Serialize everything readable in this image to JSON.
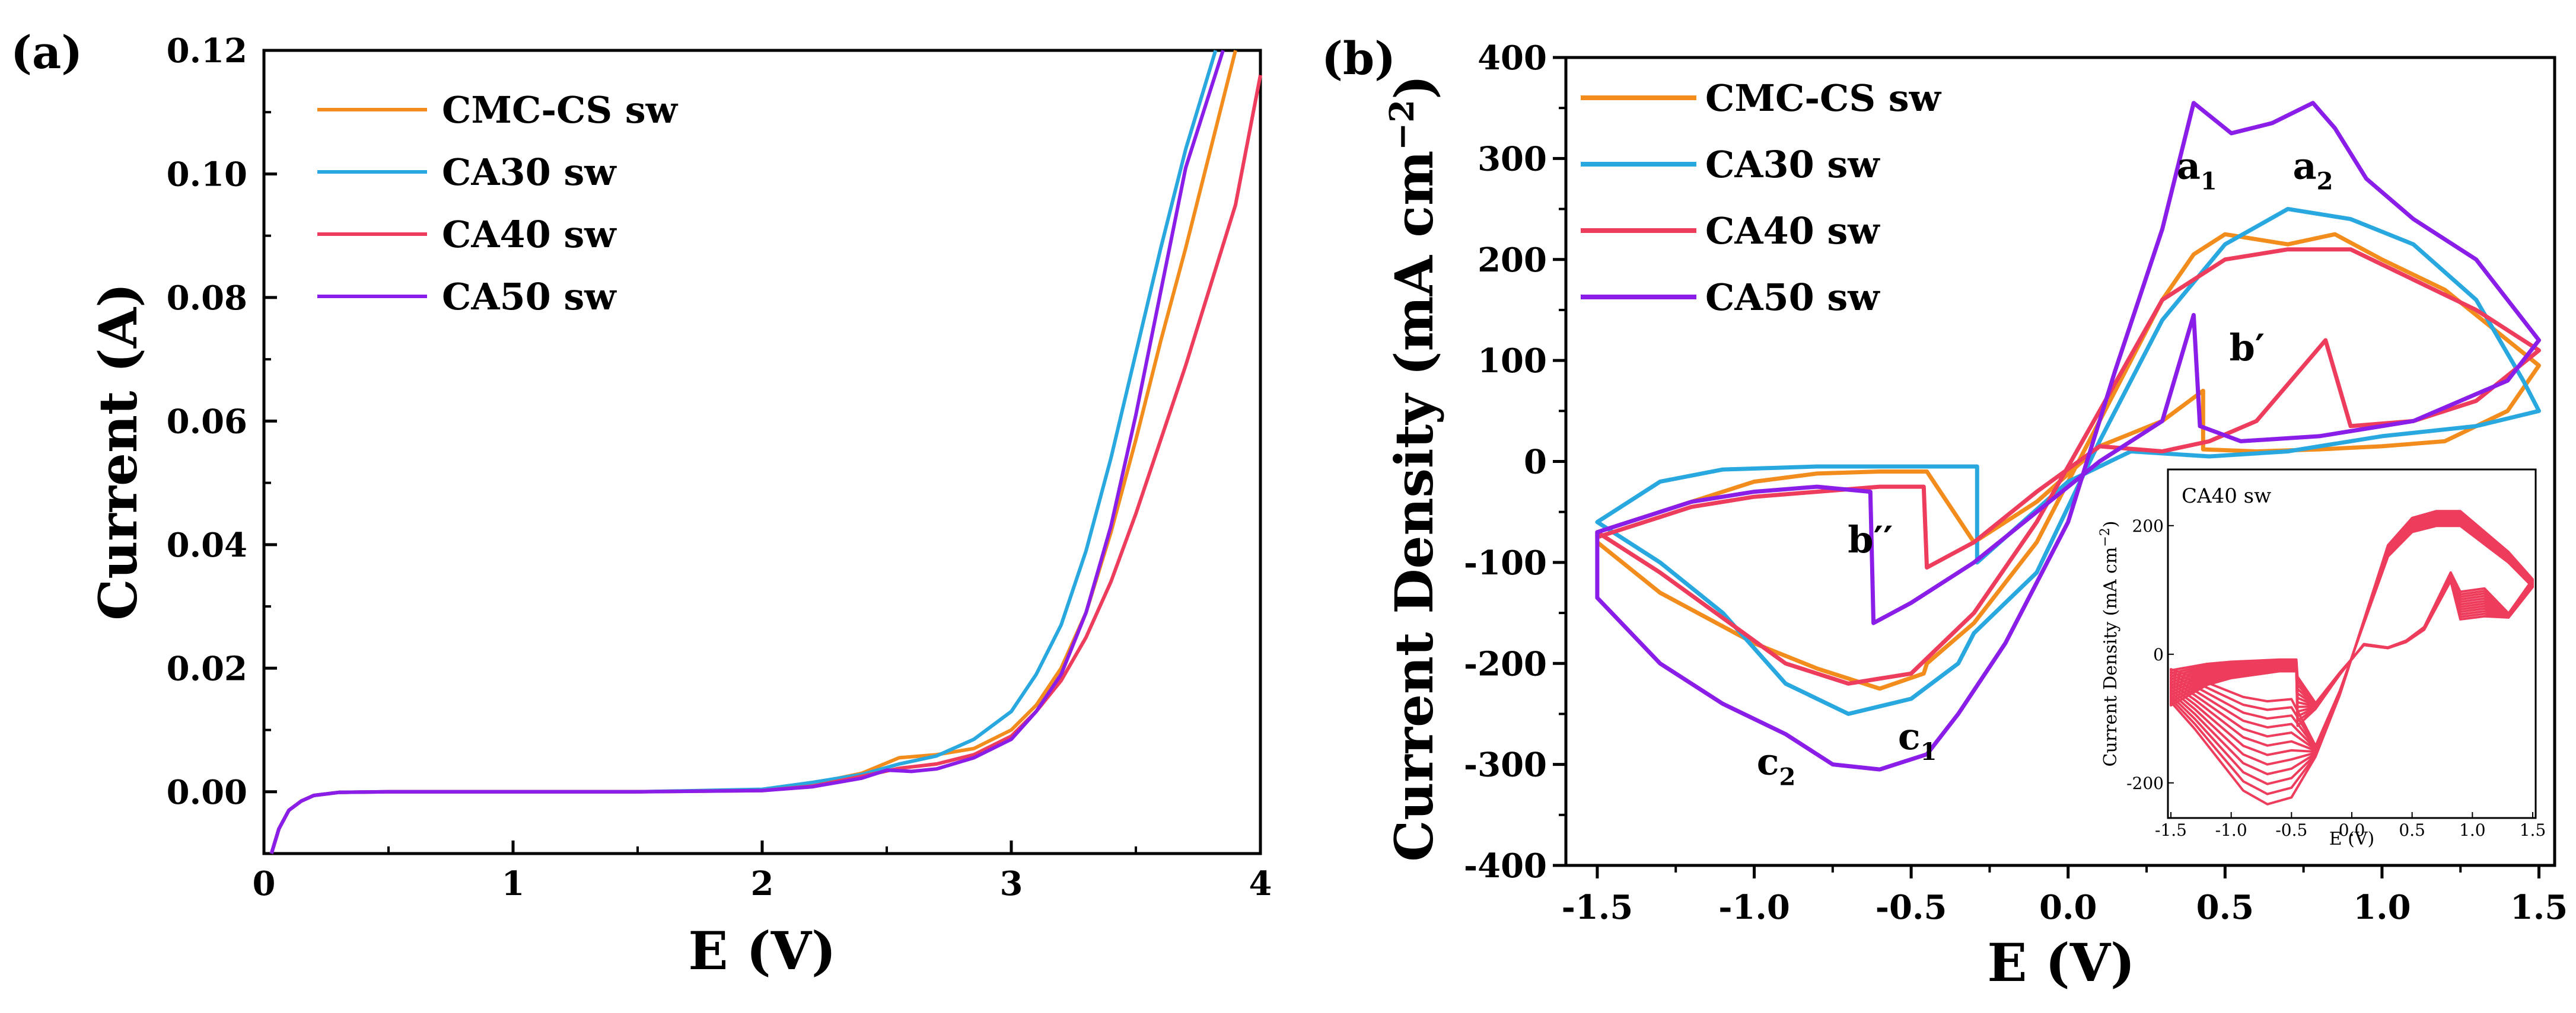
{
  "chart_data": [
    {
      "panel": "(a)",
      "type": "line",
      "title": "",
      "xlabel": "E (V)",
      "ylabel": "Current (A)",
      "xlim": [
        0,
        4
      ],
      "ylim": [
        -0.01,
        0.12
      ],
      "xticks": [
        "0",
        "1",
        "2",
        "3",
        "4"
      ],
      "yticks": [
        "0.00",
        "0.02",
        "0.04",
        "0.06",
        "0.08",
        "0.10",
        "0.12"
      ],
      "legend_position": "top-left",
      "series": [
        {
          "name": "CMC-CS sw",
          "color": "#f28c1c",
          "x": [
            0.03,
            0.06,
            0.1,
            0.15,
            0.2,
            0.3,
            0.5,
            1.0,
            1.5,
            2.0,
            2.2,
            2.4,
            2.55,
            2.7,
            2.85,
            3.0,
            3.1,
            3.2,
            3.3,
            3.4,
            3.5,
            3.6,
            3.7,
            3.8,
            3.9
          ],
          "y": [
            -0.01,
            -0.006,
            -0.003,
            -0.0015,
            -0.0006,
            -0.0001,
            0.0,
            0.0,
            0.0,
            0.0003,
            0.0013,
            0.003,
            0.0055,
            0.006,
            0.007,
            0.01,
            0.014,
            0.02,
            0.029,
            0.042,
            0.057,
            0.073,
            0.088,
            0.104,
            0.12
          ]
        },
        {
          "name": "CA30 sw",
          "color": "#29a8e0",
          "x": [
            0.03,
            0.06,
            0.1,
            0.15,
            0.2,
            0.3,
            0.5,
            1.0,
            1.5,
            2.0,
            2.2,
            2.4,
            2.55,
            2.7,
            2.85,
            3.0,
            3.1,
            3.2,
            3.3,
            3.4,
            3.5,
            3.6,
            3.7,
            3.82
          ],
          "y": [
            -0.01,
            -0.006,
            -0.003,
            -0.0015,
            -0.0006,
            -0.0001,
            0.0,
            0.0,
            0.0,
            0.0004,
            0.0015,
            0.0028,
            0.0045,
            0.0058,
            0.0085,
            0.013,
            0.019,
            0.027,
            0.039,
            0.054,
            0.071,
            0.088,
            0.104,
            0.12
          ]
        },
        {
          "name": "CA40 sw",
          "color": "#ee3c5c",
          "x": [
            0.03,
            0.06,
            0.1,
            0.15,
            0.2,
            0.3,
            0.5,
            1.0,
            1.5,
            2.0,
            2.2,
            2.4,
            2.55,
            2.7,
            2.85,
            3.0,
            3.1,
            3.2,
            3.3,
            3.4,
            3.5,
            3.6,
            3.7,
            3.8,
            3.9,
            4.0
          ],
          "y": [
            -0.01,
            -0.006,
            -0.003,
            -0.0015,
            -0.0006,
            -0.0001,
            0.0,
            0.0,
            0.0,
            0.0002,
            0.0009,
            0.0025,
            0.0038,
            0.0045,
            0.006,
            0.009,
            0.013,
            0.018,
            0.025,
            0.034,
            0.045,
            0.057,
            0.069,
            0.082,
            0.095,
            0.116
          ]
        },
        {
          "name": "CA50 sw",
          "color": "#8a1ee8",
          "x": [
            0.03,
            0.06,
            0.1,
            0.15,
            0.2,
            0.3,
            0.5,
            1.0,
            1.5,
            2.0,
            2.2,
            2.4,
            2.5,
            2.6,
            2.7,
            2.85,
            3.0,
            3.1,
            3.2,
            3.3,
            3.4,
            3.5,
            3.6,
            3.7,
            3.85
          ],
          "y": [
            -0.01,
            -0.006,
            -0.003,
            -0.0015,
            -0.0006,
            -0.0001,
            0.0,
            0.0,
            0.0,
            0.0002,
            0.0008,
            0.0022,
            0.0035,
            0.0033,
            0.0037,
            0.0055,
            0.0085,
            0.013,
            0.019,
            0.029,
            0.043,
            0.061,
            0.081,
            0.101,
            0.12
          ]
        }
      ]
    },
    {
      "panel": "(b)",
      "type": "line",
      "title": "",
      "xlabel": "E (V)",
      "ylabel": "Current Density (mA cm",
      "ylabel_sup": "−2",
      "ylabel_close": ")",
      "xlim": [
        -1.6,
        1.55
      ],
      "ylim": [
        -400,
        400
      ],
      "xticks": [
        "-1.5",
        "-1.0",
        "-0.5",
        "0.0",
        "0.5",
        "1.0",
        "1.5"
      ],
      "yticks": [
        "-400",
        "-300",
        "-200",
        "-100",
        "0",
        "100",
        "200",
        "300",
        "400"
      ],
      "legend_position": "top-left",
      "annotations": [
        {
          "text": "a",
          "sub": "1",
          "x": 0.41,
          "y": 280
        },
        {
          "text": "a",
          "sub": "2",
          "x": 0.78,
          "y": 280
        },
        {
          "text": "b′",
          "x": 0.57,
          "y": 100
        },
        {
          "text": "b′′",
          "x": -0.63,
          "y": -90
        },
        {
          "text": "c",
          "sub": "1",
          "x": -0.48,
          "y": -285
        },
        {
          "text": "c",
          "sub": "2",
          "x": -0.93,
          "y": -310
        }
      ],
      "series": [
        {
          "name": "CMC-CS sw",
          "color": "#f28c1c",
          "x": [
            -1.5,
            -1.3,
            -1.0,
            -0.8,
            -0.6,
            -0.46,
            -0.45,
            -0.3,
            -0.1,
            0.1,
            0.3,
            0.4,
            0.5,
            0.7,
            0.85,
            1.0,
            1.2,
            1.4,
            1.5,
            1.4,
            1.2,
            1.0,
            0.8,
            0.6,
            0.43,
            0.43,
            0.3,
            0.1,
            -0.1,
            -0.3,
            -0.45,
            -0.6,
            -0.8,
            -1.0,
            -1.2,
            -1.5
          ],
          "y": [
            -80,
            -130,
            -180,
            -205,
            -225,
            -210,
            -200,
            -160,
            -80,
            40,
            160,
            205,
            225,
            215,
            225,
            200,
            170,
            120,
            95,
            50,
            20,
            15,
            12,
            10,
            12,
            70,
            40,
            15,
            -40,
            -80,
            -10,
            -10,
            -12,
            -20,
            -40,
            -70
          ]
        },
        {
          "name": "CA30 sw",
          "color": "#29a8e0",
          "x": [
            -1.5,
            -1.3,
            -1.1,
            -0.9,
            -0.7,
            -0.5,
            -0.35,
            -0.3,
            -0.1,
            0.1,
            0.3,
            0.5,
            0.7,
            0.9,
            1.1,
            1.3,
            1.45,
            1.5,
            1.3,
            1.0,
            0.7,
            0.45,
            0.2,
            0.0,
            -0.29,
            -0.29,
            -0.5,
            -0.8,
            -1.1,
            -1.3,
            -1.5
          ],
          "y": [
            -60,
            -100,
            -150,
            -220,
            -250,
            -235,
            -200,
            -170,
            -110,
            20,
            140,
            215,
            250,
            240,
            215,
            160,
            80,
            50,
            35,
            25,
            10,
            5,
            10,
            -20,
            -100,
            -5,
            -5,
            -5,
            -8,
            -20,
            -60
          ]
        },
        {
          "name": "CA40 sw",
          "color": "#ee3c5c",
          "x": [
            -1.5,
            -1.3,
            -1.1,
            -0.9,
            -0.7,
            -0.5,
            -0.3,
            -0.1,
            0.1,
            0.3,
            0.5,
            0.7,
            0.9,
            1.1,
            1.3,
            1.5,
            1.3,
            1.1,
            0.9,
            0.82,
            0.6,
            0.45,
            0.3,
            0.1,
            -0.1,
            -0.3,
            -0.45,
            -0.46,
            -0.6,
            -0.8,
            -1.0,
            -1.2,
            -1.5
          ],
          "y": [
            -70,
            -110,
            -155,
            -200,
            -220,
            -210,
            -150,
            -60,
            50,
            160,
            200,
            210,
            210,
            180,
            150,
            110,
            60,
            40,
            35,
            120,
            40,
            20,
            10,
            15,
            -30,
            -80,
            -105,
            -25,
            -25,
            -30,
            -35,
            -45,
            -75
          ]
        },
        {
          "name": "CA50 sw",
          "color": "#8a1ee8",
          "x": [
            -1.5,
            -1.3,
            -1.1,
            -0.9,
            -0.75,
            -0.6,
            -0.45,
            -0.35,
            -0.2,
            0.0,
            0.15,
            0.3,
            0.4,
            0.52,
            0.65,
            0.78,
            0.85,
            0.95,
            1.1,
            1.3,
            1.5,
            1.4,
            1.1,
            0.8,
            0.55,
            0.42,
            0.4,
            0.3,
            0.1,
            -0.1,
            -0.3,
            -0.5,
            -0.62,
            -0.63,
            -0.8,
            -1.0,
            -1.2,
            -1.5
          ],
          "y": [
            -135,
            -200,
            -240,
            -270,
            -300,
            -305,
            -290,
            -250,
            -180,
            -60,
            90,
            230,
            355,
            325,
            335,
            355,
            330,
            280,
            240,
            200,
            120,
            80,
            40,
            25,
            20,
            35,
            145,
            40,
            0,
            -50,
            -100,
            -140,
            -160,
            -30,
            -25,
            -30,
            -40,
            -70
          ]
        }
      ],
      "inset": {
        "title": "CA40 sw",
        "xlabel": "E (V)",
        "ylabel": "Current Density (mA cm",
        "ylabel_sup": "−2",
        "ylabel_close": ")",
        "xlim": [
          -1.5,
          1.5
        ],
        "ylim": [
          -250,
          280
        ],
        "xticks": [
          "-1.5",
          "-1.0",
          "-0.5",
          "0.0",
          "0.5",
          "1.0",
          "1.5"
        ],
        "yticks": [
          "-200",
          "0",
          "200"
        ],
        "color": "#ee3c5c",
        "cycles": 12
      }
    }
  ]
}
